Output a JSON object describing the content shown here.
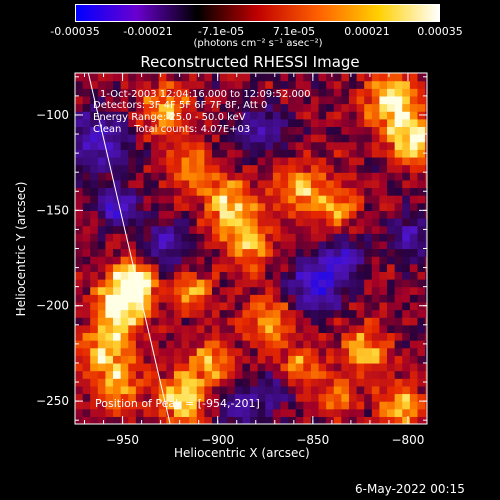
{
  "colorbar": {
    "min": -0.00035,
    "max": 0.00035,
    "tick_labels": [
      "-0.00035",
      "-0.00021",
      "-7.1e-05",
      "7.1e-05",
      "0.00021",
      "0.00035"
    ],
    "unit_label": "(photons cm⁻² s⁻¹ asec⁻²)",
    "colors": [
      "#0000ff",
      "#6a00d0",
      "#000000",
      "#c00000",
      "#ff6000",
      "#ffd000",
      "#ffffff"
    ]
  },
  "chart_data": {
    "type": "heatmap",
    "title": "Reconstructed RHESSI Image",
    "xlabel": "Heliocentric X (arcsec)",
    "ylabel": "Heliocentric Y (arcsec)",
    "xlim": [
      -975,
      -790
    ],
    "ylim": [
      -262,
      -78
    ],
    "xticks": [
      -950,
      -900,
      -850,
      -800
    ],
    "yticks": [
      -100,
      -150,
      -200,
      -250
    ],
    "xtick_labels": [
      "−950",
      "−900",
      "−850",
      "−800"
    ],
    "ytick_labels": [
      "−100",
      "−150",
      "−200",
      "−250"
    ],
    "annotations": [
      "1-Oct-2003 12:04:16.000 to 12:09:52.000",
      "Detectors: 3F 4F 5F 6F 7F 8F, Att 0",
      "Energy Range: 25.0 - 50.0 keV",
      "Clean    Total counts: 4.07E+03"
    ],
    "peak_label": "Position of Peak = [-954,-201]",
    "peak": [
      -954,
      -201
    ],
    "limb_line": [
      [
        -968,
        -78
      ],
      [
        -925,
        -262
      ]
    ],
    "bright_regions": [
      {
        "x": -952,
        "y": -200,
        "amp": 1.0,
        "r": 14
      },
      {
        "x": -945,
        "y": -188,
        "amp": 0.85,
        "r": 10
      },
      {
        "x": -960,
        "y": -225,
        "amp": 0.7,
        "r": 14
      },
      {
        "x": -955,
        "y": -245,
        "amp": 0.55,
        "r": 12
      },
      {
        "x": -920,
        "y": -250,
        "amp": 0.75,
        "r": 14
      },
      {
        "x": -915,
        "y": -195,
        "amp": 0.6,
        "r": 10
      },
      {
        "x": -905,
        "y": -230,
        "amp": 0.6,
        "r": 12
      },
      {
        "x": -895,
        "y": -150,
        "amp": 0.75,
        "r": 14
      },
      {
        "x": -885,
        "y": -170,
        "amp": 0.6,
        "r": 12
      },
      {
        "x": -930,
        "y": -100,
        "amp": 0.6,
        "r": 14
      },
      {
        "x": -915,
        "y": -130,
        "amp": 0.55,
        "r": 12
      },
      {
        "x": -860,
        "y": -140,
        "amp": 0.6,
        "r": 14
      },
      {
        "x": -840,
        "y": -150,
        "amp": 0.55,
        "r": 12
      },
      {
        "x": -810,
        "y": -95,
        "amp": 0.9,
        "r": 14
      },
      {
        "x": -800,
        "y": -115,
        "amp": 0.8,
        "r": 12
      },
      {
        "x": -875,
        "y": -210,
        "amp": 0.65,
        "r": 12
      },
      {
        "x": -860,
        "y": -235,
        "amp": 0.55,
        "r": 12
      },
      {
        "x": -825,
        "y": -225,
        "amp": 0.7,
        "r": 12
      },
      {
        "x": -805,
        "y": -255,
        "amp": 0.7,
        "r": 12
      },
      {
        "x": -840,
        "y": -250,
        "amp": 0.5,
        "r": 10
      }
    ],
    "dark_regions": [
      {
        "x": -965,
        "y": -115,
        "amp": 0.7,
        "r": 16
      },
      {
        "x": -955,
        "y": -150,
        "amp": 0.8,
        "r": 10
      },
      {
        "x": -930,
        "y": -170,
        "amp": 0.6,
        "r": 12
      },
      {
        "x": -880,
        "y": -110,
        "amp": 0.5,
        "r": 14
      },
      {
        "x": -850,
        "y": -190,
        "amp": 0.9,
        "r": 14
      },
      {
        "x": -835,
        "y": -175,
        "amp": 0.6,
        "r": 10
      },
      {
        "x": -800,
        "y": -165,
        "amp": 0.55,
        "r": 12
      },
      {
        "x": -890,
        "y": -255,
        "amp": 0.5,
        "r": 12
      },
      {
        "x": -870,
        "y": -245,
        "amp": 0.5,
        "r": 10
      }
    ]
  },
  "footer": {
    "date": "6-May-2022 00:15"
  }
}
